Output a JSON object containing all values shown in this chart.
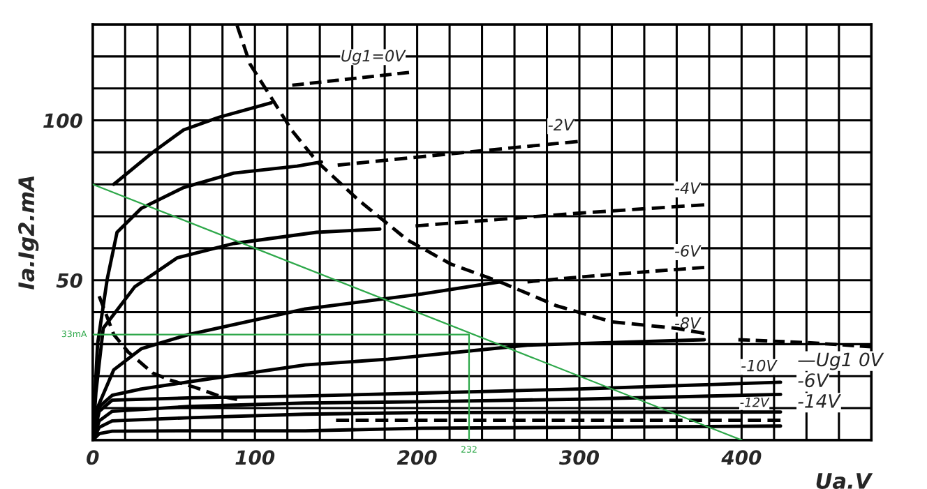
{
  "chart_data": {
    "type": "line",
    "xlabel": "Ua.V",
    "ylabel": "Ia.Ig2.mA",
    "xlim": [
      0,
      480
    ],
    "ylim": [
      0,
      130
    ],
    "xticks": [
      0,
      {
        "value": 20,
        "label": null
      },
      {
        "value": 40,
        "label": null
      },
      {
        "value": 60,
        "label": null
      },
      {
        "value": 80,
        "label": null
      },
      100,
      {
        "value": 120,
        "label": null
      },
      {
        "value": 140,
        "label": null
      },
      {
        "value": 160,
        "label": null
      },
      {
        "value": 180,
        "label": null
      },
      200,
      {
        "value": 220,
        "label": null
      },
      {
        "value": 240,
        "label": null
      },
      {
        "value": 260,
        "label": null
      },
      {
        "value": 280,
        "label": null
      },
      300,
      {
        "value": 320,
        "label": null
      },
      {
        "value": 340,
        "label": null
      },
      {
        "value": 360,
        "label": null
      },
      {
        "value": 380,
        "label": null
      },
      400,
      {
        "value": 420,
        "label": null
      },
      {
        "value": 440,
        "label": null
      },
      {
        "value": 460,
        "label": null
      },
      {
        "value": 480,
        "label": null
      }
    ],
    "yticks": [
      {
        "value": 0,
        "label": null
      },
      {
        "value": 10,
        "label": null
      },
      {
        "value": 20,
        "label": null
      },
      {
        "value": 30,
        "label": null
      },
      {
        "value": 40,
        "label": null
      },
      50,
      {
        "value": 60,
        "label": null
      },
      {
        "value": 70,
        "label": null
      },
      {
        "value": 80,
        "label": null
      },
      {
        "value": 90,
        "label": null
      },
      100,
      {
        "value": 110,
        "label": null
      },
      {
        "value": 120,
        "label": null
      },
      {
        "value": 130,
        "label": null
      }
    ],
    "grid": true,
    "series": [
      {
        "line_style": "solid",
        "color": "#000000",
        "x": [
          13,
          37,
          56,
          78,
          110
        ],
        "values": [
          80,
          90,
          97,
          101,
          105.5
        ]
      },
      {
        "name": "Ug1=0V",
        "line_style": "dashed",
        "color": "#000000",
        "x": [
          123,
          150,
          195
        ],
        "values": [
          111,
          112.5,
          115
        ]
      },
      {
        "line_style": "solid",
        "color": "#000000",
        "x": [
          0,
          3,
          9,
          15,
          30,
          56,
          87,
          126,
          141
        ],
        "values": [
          0,
          30,
          50.5,
          65,
          72.5,
          79,
          83.5,
          85.7,
          87
        ]
      },
      {
        "name": "-2V",
        "line_style": "dashed",
        "color": "#000000",
        "x": [
          151,
          200,
          250,
          299
        ],
        "values": [
          86,
          88.5,
          91,
          93.4
        ]
      },
      {
        "line_style": "solid",
        "color": "#000000",
        "x": [
          0,
          2,
          6.5,
          26,
          52,
          87,
          138,
          177
        ],
        "values": [
          0,
          15,
          35,
          48,
          57,
          61.5,
          65,
          66
        ]
      },
      {
        "name": "-4V",
        "line_style": "dashed",
        "color": "#000000",
        "x": [
          199,
          250,
          300,
          377
        ],
        "values": [
          67,
          69,
          71,
          73.6
        ]
      },
      {
        "line_style": "solid",
        "color": "#000000",
        "x": [
          0,
          2,
          13,
          30,
          59,
          131,
          203,
          251
        ],
        "values": [
          0,
          9,
          22,
          28.6,
          33,
          41,
          45.7,
          49.5
        ]
      },
      {
        "name": "-6V",
        "line_style": "dashed",
        "color": "#000000",
        "x": [
          268,
          300,
          350,
          377
        ],
        "values": [
          49.5,
          51,
          53,
          54
        ]
      },
      {
        "name": "-8V",
        "line_style": "solid",
        "color": "#000000",
        "x": [
          0,
          3,
          12,
          30,
          59,
          131,
          182,
          268,
          377
        ],
        "values": [
          0,
          10,
          14,
          16,
          18.2,
          23.5,
          25.3,
          29.7,
          31.4
        ]
      },
      {
        "line_style": "dashed",
        "color": "#000000",
        "x": [
          398,
          440,
          480
        ],
        "values": [
          31.4,
          30.5,
          29.2
        ]
      },
      {
        "name": "-10V",
        "line_style": "solid",
        "color": "#000000",
        "x": [
          0,
          4,
          12,
          59,
          131,
          203,
          300,
          424
        ],
        "values": [
          0,
          9,
          12.5,
          13.2,
          13.8,
          14.7,
          16,
          18.1
        ]
      },
      {
        "name": "-12V",
        "line_style": "solid",
        "color": "#000000",
        "x": [
          0,
          4,
          12,
          59,
          131,
          203,
          300,
          424
        ],
        "values": [
          0,
          6,
          9,
          10.5,
          11.6,
          12,
          12.8,
          14.3
        ]
      },
      {
        "line_style": "solid",
        "color": "#000000",
        "x": [
          0,
          4,
          12,
          59,
          131,
          203,
          300,
          424
        ],
        "values": [
          0,
          4,
          6,
          7,
          8.1,
          8.6,
          8.7,
          8.8
        ]
      },
      {
        "line_style": "dashed",
        "color": "#000000",
        "x": [
          150,
          424
        ],
        "values": [
          6.2,
          6.2
        ]
      },
      {
        "line_style": "solid",
        "color": "#000000",
        "x": [
          0,
          4,
          12,
          59,
          131,
          203,
          300,
          424
        ],
        "values": [
          0,
          2,
          2.8,
          2.9,
          2.9,
          3.7,
          4,
          4.4
        ]
      },
      {
        "line_style": "dashed",
        "color": "#000000",
        "x": [
          89,
          97,
          123,
          138.5,
          164,
          194,
          221,
          251,
          286,
          320,
          359,
          377
        ],
        "values": [
          129.7,
          117.6,
          96.7,
          87,
          75,
          62.6,
          55,
          49.5,
          42,
          37,
          35,
          33.4
        ]
      },
      {
        "line_style": "dashed",
        "color": "#000000",
        "x": [
          4,
          13,
          22,
          37,
          48,
          63,
          78,
          89
        ],
        "values": [
          45,
          33,
          27.5,
          21,
          18.7,
          16.5,
          13.8,
          12.7
        ]
      },
      {
        "line_style": "solid",
        "color": "#2ea84a",
        "x": [
          0,
          400
        ],
        "values": [
          80,
          0
        ]
      },
      {
        "line_style": "solid",
        "color": "#2ea84a",
        "x": [
          0,
          232,
          232
        ],
        "values": [
          33,
          33,
          0
        ]
      }
    ],
    "annotations": [
      "—Ug1 0V",
      "-6V",
      "-14V",
      {
        "text": "33mA",
        "x": 0,
        "y": 33
      },
      {
        "text": "232",
        "x": 232,
        "y": 0
      }
    ]
  }
}
